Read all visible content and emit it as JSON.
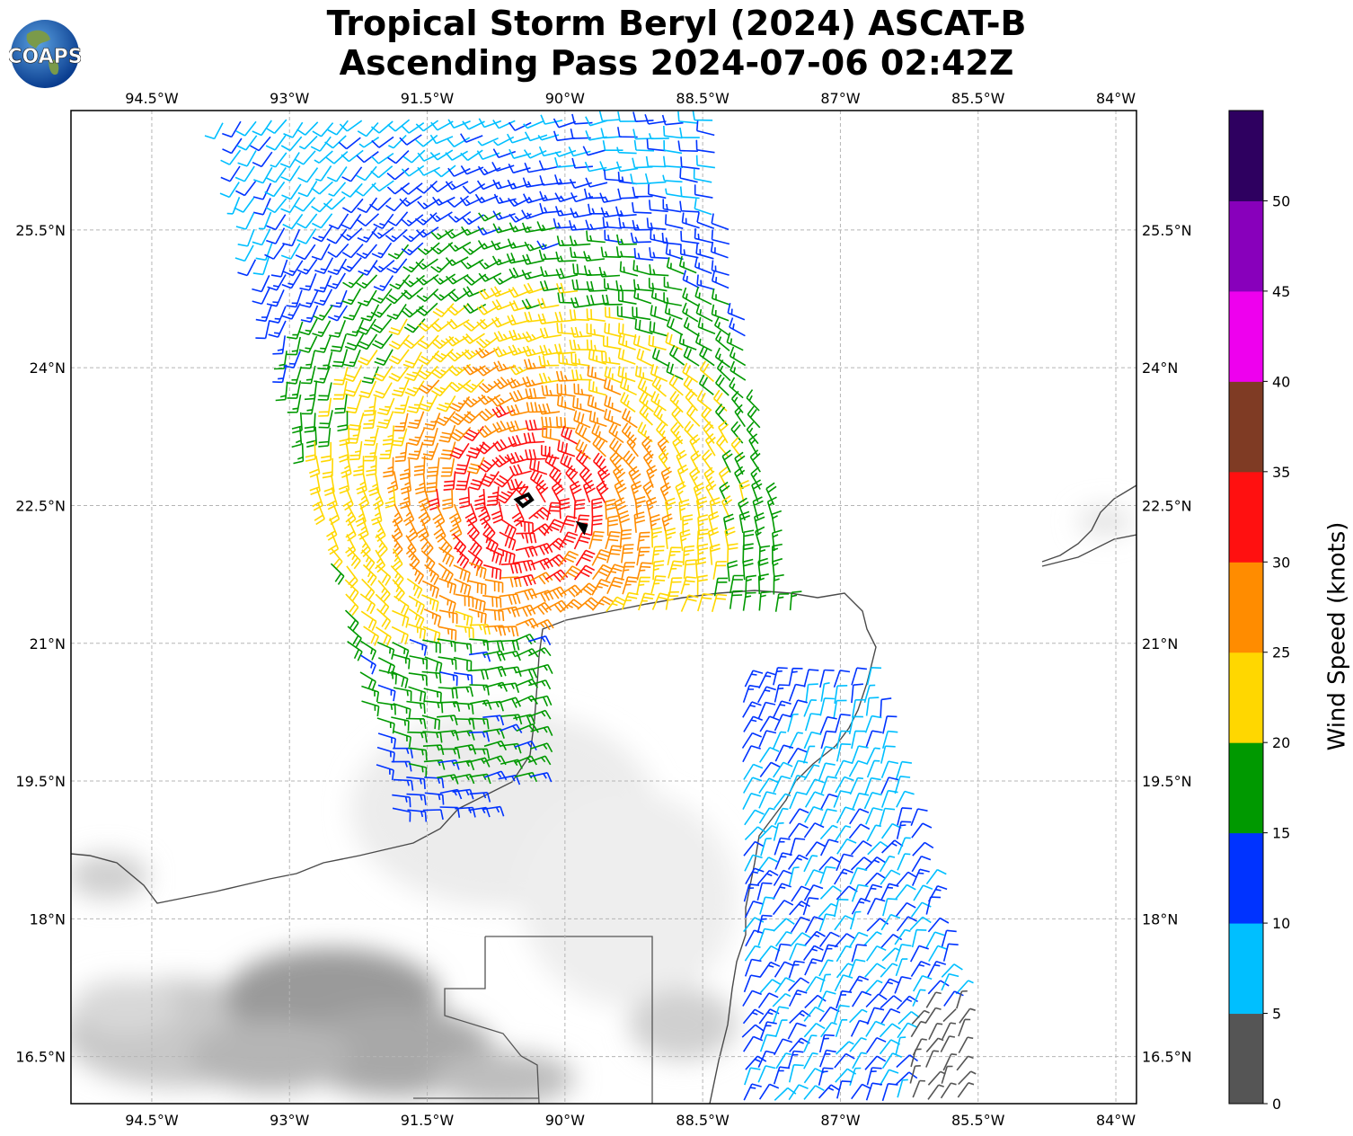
{
  "title": {
    "line1": "Tropical Storm Beryl (2024) ASCAT-B",
    "line2": "Ascending Pass 2024-07-06 02:42Z"
  },
  "logo": {
    "text": "COAPS"
  },
  "map": {
    "lon_range": [
      -95.5,
      -83.9
    ],
    "lat_range": [
      16.0,
      26.8
    ],
    "lon_ticks": [
      "94.5°W",
      "93°W",
      "91.5°W",
      "90°W",
      "88.5°W",
      "87°W",
      "85.5°W",
      "84°W"
    ],
    "lat_ticks": [
      "25.5°N",
      "24°N",
      "22.5°N",
      "21°N",
      "19.5°N",
      "18°N",
      "16.5°N"
    ],
    "storm_center_symbols": 2,
    "wind_barbs": "ASCAT-B wind barbs colored by speed, cyclonic circulation around the Bay of Campeche / Gulf of Mexico"
  },
  "colorbar": {
    "label": "Wind Speed (knots)",
    "ticks": [
      "0",
      "5",
      "10",
      "15",
      "20",
      "25",
      "30",
      "35",
      "40",
      "45",
      "50"
    ],
    "colors": [
      "#555555",
      "#00BFFF",
      "#0033FF",
      "#009900",
      "#FFD700",
      "#FF8C00",
      "#FF1010",
      "#7F3B24",
      "#EE00EE",
      "#8800BB",
      "#2E0060"
    ]
  }
}
